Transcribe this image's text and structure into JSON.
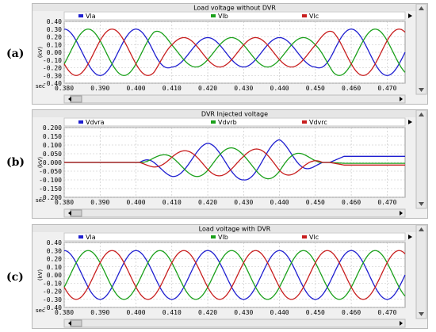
{
  "panels": [
    {
      "label": "(a)",
      "chart_data": {
        "type": "line",
        "title": "Load voltage without DVR",
        "ylabel": "(kV)",
        "xlabel": "sec",
        "xlim": [
          0.38,
          0.475
        ],
        "ylim": [
          -0.4,
          0.4
        ],
        "xticks": [
          "0.380",
          "0.390",
          "0.400",
          "0.410",
          "0.420",
          "0.430",
          "0.440",
          "0.450",
          "0.460",
          "0.470"
        ],
        "yticks": [
          "0.40",
          "0.30",
          "0.20",
          "0.10",
          "0.00",
          "-0.10",
          "-0.20",
          "-0.30",
          "-0.40"
        ],
        "grid": true,
        "legend_position": "top",
        "series": [
          {
            "name": "Vla",
            "color": "#1f1fd0",
            "amplitude_kv": [
              [
                0.38,
                0.3
              ],
              [
                0.405,
                0.3
              ],
              [
                0.41,
                0.19
              ],
              [
                0.45,
                0.19
              ],
              [
                0.455,
                0.3
              ],
              [
                0.475,
                0.3
              ]
            ],
            "phase_deg": 90
          },
          {
            "name": "Vlb",
            "color": "#1aa01a",
            "amplitude_kv": [
              [
                0.38,
                0.3
              ],
              [
                0.405,
                0.3
              ],
              [
                0.41,
                0.19
              ],
              [
                0.45,
                0.19
              ],
              [
                0.455,
                0.3
              ],
              [
                0.475,
                0.3
              ]
            ],
            "phase_deg": -30
          },
          {
            "name": "Vlc",
            "color": "#c81e1e",
            "amplitude_kv": [
              [
                0.38,
                0.3
              ],
              [
                0.405,
                0.3
              ],
              [
                0.41,
                0.19
              ],
              [
                0.45,
                0.19
              ],
              [
                0.455,
                0.3
              ],
              [
                0.475,
                0.3
              ]
            ],
            "phase_deg": 210
          }
        ]
      }
    },
    {
      "label": "(b)",
      "chart_data": {
        "type": "line",
        "title": "DVR Injected voltage",
        "ylabel": "(kV)",
        "xlabel": "sec",
        "xlim": [
          0.38,
          0.475
        ],
        "ylim": [
          -0.2,
          0.2
        ],
        "xticks": [
          "0.380",
          "0.390",
          "0.400",
          "0.410",
          "0.420",
          "0.430",
          "0.440",
          "0.450",
          "0.460",
          "0.470"
        ],
        "yticks": [
          "0.200",
          "0.150",
          "0.100",
          "0.050",
          "0.000",
          "-0.050",
          "-0.100",
          "-0.150",
          "-0.200"
        ],
        "grid": true,
        "legend_position": "top",
        "series": [
          {
            "name": "Vdvra",
            "color": "#1f1fd0",
            "amplitude_kv": [
              [
                0.38,
                0.0
              ],
              [
                0.401,
                0.0
              ],
              [
                0.405,
                0.05
              ],
              [
                0.41,
                0.08
              ],
              [
                0.42,
                0.11
              ],
              [
                0.43,
                0.1
              ],
              [
                0.44,
                0.13
              ],
              [
                0.445,
                0.08
              ],
              [
                0.45,
                0.02
              ],
              [
                0.452,
                0.0
              ],
              [
                0.475,
                0.0
              ]
            ],
            "phase_deg": 90,
            "tail_offset_kv": 0.035
          },
          {
            "name": "Vdvrb",
            "color": "#1aa01a",
            "amplitude_kv": [
              [
                0.38,
                0.0
              ],
              [
                0.401,
                0.0
              ],
              [
                0.405,
                0.03
              ],
              [
                0.41,
                0.06
              ],
              [
                0.42,
                0.09
              ],
              [
                0.43,
                0.08
              ],
              [
                0.44,
                0.1
              ],
              [
                0.445,
                0.06
              ],
              [
                0.45,
                0.02
              ],
              [
                0.452,
                0.0
              ],
              [
                0.475,
                0.0
              ]
            ],
            "phase_deg": -30,
            "tail_offset_kv": -0.005
          },
          {
            "name": "Vdvrc",
            "color": "#c81e1e",
            "amplitude_kv": [
              [
                0.38,
                0.0
              ],
              [
                0.401,
                0.0
              ],
              [
                0.405,
                0.03
              ],
              [
                0.41,
                0.06
              ],
              [
                0.42,
                0.08
              ],
              [
                0.43,
                0.07
              ],
              [
                0.44,
                0.09
              ],
              [
                0.445,
                0.06
              ],
              [
                0.45,
                0.02
              ],
              [
                0.452,
                0.0
              ],
              [
                0.475,
                0.0
              ]
            ],
            "phase_deg": 210,
            "tail_offset_kv": -0.015
          }
        ]
      }
    },
    {
      "label": "(c)",
      "chart_data": {
        "type": "line",
        "title": "Load voltage with DVR",
        "ylabel": "(kV)",
        "xlabel": "sec",
        "xlim": [
          0.38,
          0.475
        ],
        "ylim": [
          -0.4,
          0.4
        ],
        "xticks": [
          "0.380",
          "0.390",
          "0.400",
          "0.410",
          "0.420",
          "0.430",
          "0.440",
          "0.450",
          "0.460",
          "0.470"
        ],
        "yticks": [
          "0.40",
          "0.30",
          "0.20",
          "0.10",
          "0.00",
          "-0.10",
          "-0.20",
          "-0.30",
          "-0.40"
        ],
        "grid": true,
        "legend_position": "top",
        "series": [
          {
            "name": "Vla",
            "color": "#1f1fd0",
            "amplitude_kv": [
              [
                0.38,
                0.3
              ],
              [
                0.475,
                0.3
              ]
            ],
            "phase_deg": 90
          },
          {
            "name": "Vlb",
            "color": "#1aa01a",
            "amplitude_kv": [
              [
                0.38,
                0.3
              ],
              [
                0.475,
                0.3
              ]
            ],
            "phase_deg": -30
          },
          {
            "name": "Vlc",
            "color": "#c81e1e",
            "amplitude_kv": [
              [
                0.38,
                0.3
              ],
              [
                0.475,
                0.3
              ]
            ],
            "phase_deg": 210
          }
        ]
      }
    }
  ],
  "frequency_hz": 50
}
